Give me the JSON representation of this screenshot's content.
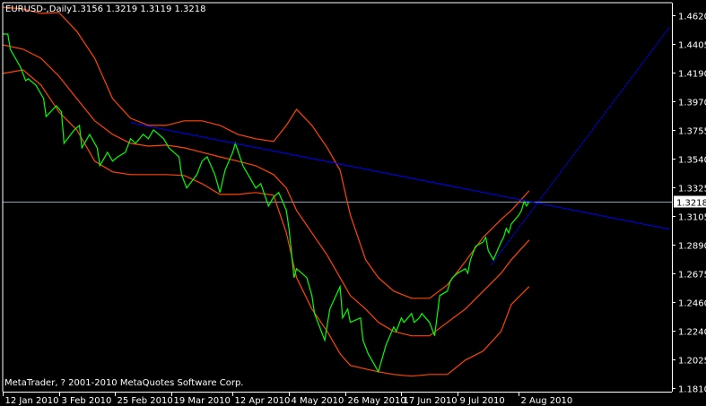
{
  "window": {
    "symbol_label": "EURUSD-,Daily",
    "ohlc": "1.3156 1.3219 1.3119 1.3218",
    "copyright": "MetaTrader, ? 2001-2010 MetaQuotes Software Corp."
  },
  "colors": {
    "background": "#000000",
    "axis": "#ffffff",
    "close_line": "#00ff00",
    "bands": "#ff4500",
    "trend_lines": "#0000ff",
    "bid_line": "#8ca0b4",
    "bid_label_bg": "#ffffff",
    "bid_label_text": "#000000"
  },
  "chart_data": {
    "type": "line",
    "title": "EURUSD-,Daily",
    "ylim": [
      1.181,
      1.462
    ],
    "xlim": [
      "2010-01-12",
      "2010-09-30"
    ],
    "grid": false,
    "y_ticks": [
      "1.4620",
      "1.4405",
      "1.4190",
      "1.3970",
      "1.3755",
      "1.3540",
      "1.3325",
      "1.3105",
      "1.2890",
      "1.2675",
      "1.2460",
      "1.2240",
      "1.2025",
      "1.1810"
    ],
    "x_ticks": [
      {
        "date": "2010-01-12",
        "label": "12 Jan 2010"
      },
      {
        "date": "2010-02-03",
        "label": "3 Feb 2010"
      },
      {
        "date": "2010-02-25",
        "label": "25 Feb 2010"
      },
      {
        "date": "2010-03-19",
        "label": "19 Mar 2010"
      },
      {
        "date": "2010-04-12",
        "label": "12 Apr 2010"
      },
      {
        "date": "2010-05-04",
        "label": "4 May 2010"
      },
      {
        "date": "2010-05-26",
        "label": "26 May 2010"
      },
      {
        "date": "2010-06-17",
        "label": "17 Jun 2010"
      },
      {
        "date": "2010-07-09",
        "label": "9 Jul 2010"
      },
      {
        "date": "2010-08-02",
        "label": "2 Aug 2010"
      }
    ],
    "bid": {
      "value": 1.3218,
      "label": "1.3218"
    },
    "close": [
      [
        "2010-01-12",
        1.4478
      ],
      [
        "2010-01-14",
        1.4478
      ],
      [
        "2010-01-15",
        1.4363
      ],
      [
        "2010-01-19",
        1.4228
      ],
      [
        "2010-01-21",
        1.4127
      ],
      [
        "2010-01-22",
        1.4141
      ],
      [
        "2010-01-25",
        1.4093
      ],
      [
        "2010-01-28",
        1.3992
      ],
      [
        "2010-01-29",
        1.3857
      ],
      [
        "2010-02-02",
        1.3938
      ],
      [
        "2010-02-04",
        1.3891
      ],
      [
        "2010-02-05",
        1.3655
      ],
      [
        "2010-02-09",
        1.3756
      ],
      [
        "2010-02-11",
        1.379
      ],
      [
        "2010-02-12",
        1.3621
      ],
      [
        "2010-02-15",
        1.3722
      ],
      [
        "2010-02-18",
        1.3621
      ],
      [
        "2010-02-19",
        1.3486
      ],
      [
        "2010-02-22",
        1.3587
      ],
      [
        "2010-02-24",
        1.352
      ],
      [
        "2010-02-26",
        1.3553
      ],
      [
        "2010-03-01",
        1.3587
      ],
      [
        "2010-03-03",
        1.3689
      ],
      [
        "2010-03-05",
        1.3655
      ],
      [
        "2010-03-08",
        1.3722
      ],
      [
        "2010-03-10",
        1.3689
      ],
      [
        "2010-03-12",
        1.3756
      ],
      [
        "2010-03-16",
        1.3689
      ],
      [
        "2010-03-18",
        1.3621
      ],
      [
        "2010-03-22",
        1.3553
      ],
      [
        "2010-03-23",
        1.3419
      ],
      [
        "2010-03-25",
        1.3318
      ],
      [
        "2010-03-29",
        1.3419
      ],
      [
        "2010-03-31",
        1.352
      ],
      [
        "2010-04-02",
        1.3553
      ],
      [
        "2010-04-05",
        1.3419
      ],
      [
        "2010-04-07",
        1.3284
      ],
      [
        "2010-04-09",
        1.3452
      ],
      [
        "2010-04-12",
        1.3587
      ],
      [
        "2010-04-13",
        1.3655
      ],
      [
        "2010-04-16",
        1.3486
      ],
      [
        "2010-04-19",
        1.3385
      ],
      [
        "2010-04-21",
        1.3318
      ],
      [
        "2010-04-23",
        1.3351
      ],
      [
        "2010-04-26",
        1.3182
      ],
      [
        "2010-04-28",
        1.325
      ],
      [
        "2010-04-30",
        1.3284
      ],
      [
        "2010-05-03",
        1.3149
      ],
      [
        "2010-05-04",
        1.3014
      ],
      [
        "2010-05-06",
        1.2642
      ],
      [
        "2010-05-07",
        1.271
      ],
      [
        "2010-05-11",
        1.2642
      ],
      [
        "2010-05-13",
        1.2507
      ],
      [
        "2010-05-14",
        1.2372
      ],
      [
        "2010-05-18",
        1.217
      ],
      [
        "2010-05-20",
        1.2406
      ],
      [
        "2010-05-24",
        1.2575
      ],
      [
        "2010-05-25",
        1.2339
      ],
      [
        "2010-05-27",
        1.2406
      ],
      [
        "2010-05-28",
        1.2305
      ],
      [
        "2010-06-01",
        1.2339
      ],
      [
        "2010-06-02",
        1.217
      ],
      [
        "2010-06-04",
        1.2069
      ],
      [
        "2010-06-07",
        1.1967
      ],
      [
        "2010-06-08",
        1.1933
      ],
      [
        "2010-06-10",
        1.2069
      ],
      [
        "2010-06-11",
        1.2136
      ],
      [
        "2010-06-14",
        1.2271
      ],
      [
        "2010-06-15",
        1.2237
      ],
      [
        "2010-06-17",
        1.2339
      ],
      [
        "2010-06-18",
        1.2305
      ],
      [
        "2010-06-21",
        1.2372
      ],
      [
        "2010-06-22",
        1.2305
      ],
      [
        "2010-06-24",
        1.2339
      ],
      [
        "2010-06-25",
        1.2372
      ],
      [
        "2010-06-28",
        1.2305
      ],
      [
        "2010-06-30",
        1.2204
      ],
      [
        "2010-07-02",
        1.2507
      ],
      [
        "2010-07-05",
        1.2541
      ],
      [
        "2010-07-06",
        1.2609
      ],
      [
        "2010-07-07",
        1.2642
      ],
      [
        "2010-07-09",
        1.2676
      ],
      [
        "2010-07-12",
        1.271
      ],
      [
        "2010-07-13",
        1.2676
      ],
      [
        "2010-07-14",
        1.2777
      ],
      [
        "2010-07-16",
        1.2878
      ],
      [
        "2010-07-19",
        1.2912
      ],
      [
        "2010-07-20",
        1.2946
      ],
      [
        "2010-07-21",
        1.2845
      ],
      [
        "2010-07-23",
        1.2777
      ],
      [
        "2010-07-26",
        1.2912
      ],
      [
        "2010-07-27",
        1.2946
      ],
      [
        "2010-07-28",
        1.3014
      ],
      [
        "2010-07-29",
        1.298
      ],
      [
        "2010-07-30",
        1.3047
      ],
      [
        "2010-08-02",
        1.3115
      ],
      [
        "2010-08-03",
        1.3149
      ],
      [
        "2010-08-04",
        1.3216
      ],
      [
        "2010-08-05",
        1.3182
      ],
      [
        "2010-08-06",
        1.3218
      ]
    ],
    "band_dates": [
      "2010-01-12",
      "2010-01-20",
      "2010-01-27",
      "2010-02-03",
      "2010-02-10",
      "2010-02-17",
      "2010-02-24",
      "2010-03-03",
      "2010-03-10",
      "2010-03-17",
      "2010-03-24",
      "2010-03-31",
      "2010-04-07",
      "2010-04-14",
      "2010-04-21",
      "2010-04-28",
      "2010-05-03",
      "2010-05-07",
      "2010-05-13",
      "2010-05-19",
      "2010-05-24",
      "2010-05-28",
      "2010-06-03",
      "2010-06-08",
      "2010-06-14",
      "2010-06-21",
      "2010-06-28",
      "2010-07-05",
      "2010-07-12",
      "2010-07-19",
      "2010-07-26",
      "2010-07-30",
      "2010-08-06"
    ],
    "upper_band": [
      1.4681,
      1.4667,
      1.4634,
      1.464,
      1.4499,
      1.4296,
      1.3992,
      1.3844,
      1.379,
      1.379,
      1.3824,
      1.3824,
      1.379,
      1.3722,
      1.3689,
      1.3668,
      1.379,
      1.3911,
      1.379,
      1.3621,
      1.3452,
      1.3115,
      1.2777,
      1.2642,
      1.2541,
      1.2487,
      1.2487,
      1.2588,
      1.2764,
      1.2946,
      1.3081,
      1.3149,
      1.3297
    ],
    "middle_band": [
      1.4397,
      1.4364,
      1.4296,
      1.4161,
      1.3992,
      1.3824,
      1.3722,
      1.3655,
      1.3634,
      1.3641,
      1.3621,
      1.3587,
      1.3553,
      1.352,
      1.3486,
      1.3419,
      1.3318,
      1.3149,
      1.298,
      1.2811,
      1.2642,
      1.2507,
      1.2406,
      1.2305,
      1.2237,
      1.2204,
      1.2204,
      1.2305,
      1.2406,
      1.2541,
      1.2676,
      1.2777,
      1.2926
    ],
    "lower_band": [
      1.4181,
      1.4208,
      1.4094,
      1.3891,
      1.3756,
      1.352,
      1.3439,
      1.3419,
      1.3419,
      1.3419,
      1.3412,
      1.3351,
      1.327,
      1.327,
      1.3284,
      1.3263,
      1.298,
      1.2642,
      1.2406,
      1.2237,
      1.2069,
      1.1981,
      1.1954,
      1.1933,
      1.1913,
      1.19,
      1.1913,
      1.1913,
      1.2021,
      1.2089,
      1.2237,
      1.244,
      1.2575
    ],
    "trend_lines": [
      {
        "from": [
          "2010-03-03",
          1.381
        ],
        "to": [
          "2010-09-30",
          1.3007
        ]
      },
      {
        "from": [
          "2010-07-22",
          1.2737
        ],
        "to": [
          "2010-09-30",
          1.4532
        ]
      }
    ]
  }
}
